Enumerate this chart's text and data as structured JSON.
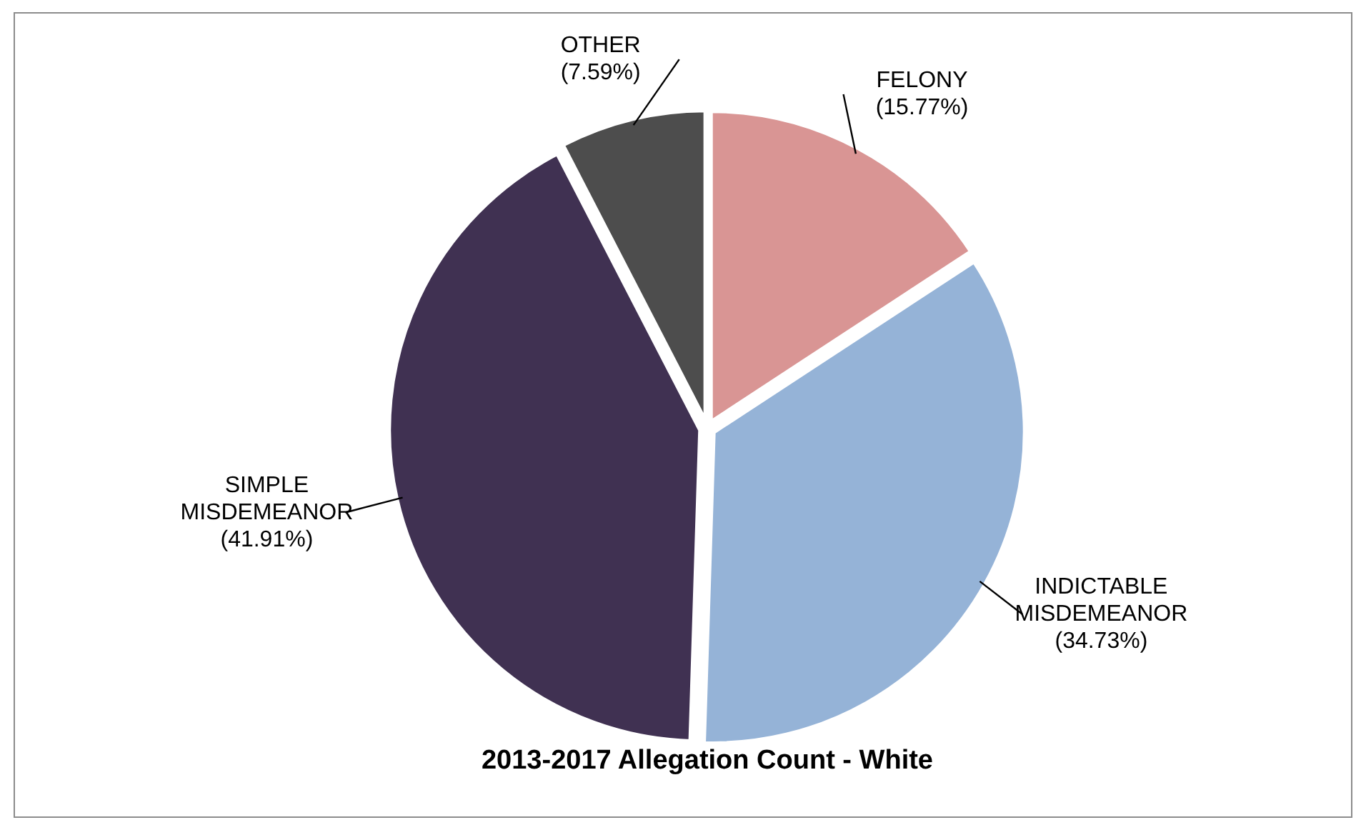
{
  "chart_data": {
    "type": "pie",
    "title": "2013-2017 Allegation Count - White",
    "categories": [
      "FELONY",
      "INDICTABLE MISDEMEANOR",
      "SIMPLE MISDEMEANOR",
      "OTHER"
    ],
    "values": [
      15.77,
      34.73,
      41.91,
      7.59
    ],
    "value_labels": [
      "(15.77%)",
      "(34.73%)",
      "(41.91%)",
      "(7.59%)"
    ],
    "colors": [
      "#d99594",
      "#95b3d7",
      "#403152",
      "#4d4d4d"
    ],
    "legend": false
  }
}
